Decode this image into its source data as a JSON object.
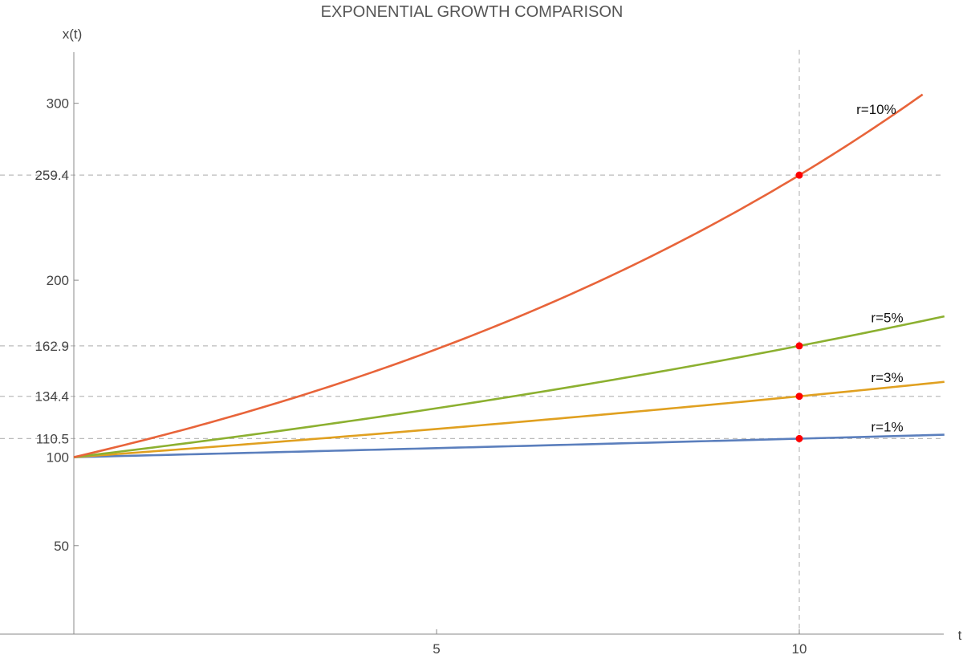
{
  "chart_data": {
    "type": "line",
    "title": "EXPONENTIAL GROWTH COMPARISON",
    "xlabel": "t",
    "ylabel": "x(t)",
    "xlim": [
      0,
      12
    ],
    "ylim": [
      0,
      330
    ],
    "grid": false,
    "legend": "inline labels at right end of curves",
    "function": "x(t) = 100 * (1 + r)^t",
    "x_ticks": [
      {
        "value": 5,
        "label": "5"
      },
      {
        "value": 10,
        "label": "10"
      }
    ],
    "y_ticks": [
      {
        "value": 50,
        "label": "50"
      },
      {
        "value": 100,
        "label": "100"
      },
      {
        "value": 200,
        "label": "200"
      },
      {
        "value": 300,
        "label": "300"
      }
    ],
    "reference_lines": {
      "vertical": [
        10
      ],
      "horizontal": [
        {
          "value": 110.5,
          "label": "110.5"
        },
        {
          "value": 134.4,
          "label": "134.4"
        },
        {
          "value": 162.9,
          "label": "162.9"
        },
        {
          "value": 259.4,
          "label": "259.4"
        }
      ]
    },
    "series": [
      {
        "name": "r=1%",
        "rate": 0.01,
        "color": "#5b7fbd",
        "t_end": 12,
        "marker_t": 10,
        "marker_value": 110.5
      },
      {
        "name": "r=3%",
        "rate": 0.03,
        "color": "#e0a020",
        "t_end": 12,
        "marker_t": 10,
        "marker_value": 134.4
      },
      {
        "name": "r=5%",
        "rate": 0.05,
        "color": "#8cb030",
        "t_end": 12,
        "marker_t": 10,
        "marker_value": 162.9
      },
      {
        "name": "r=10%",
        "rate": 0.1,
        "color": "#e8643a",
        "t_end": 11.7,
        "marker_t": 10,
        "marker_value": 259.4
      }
    ],
    "marker_color": "#ff0000"
  }
}
